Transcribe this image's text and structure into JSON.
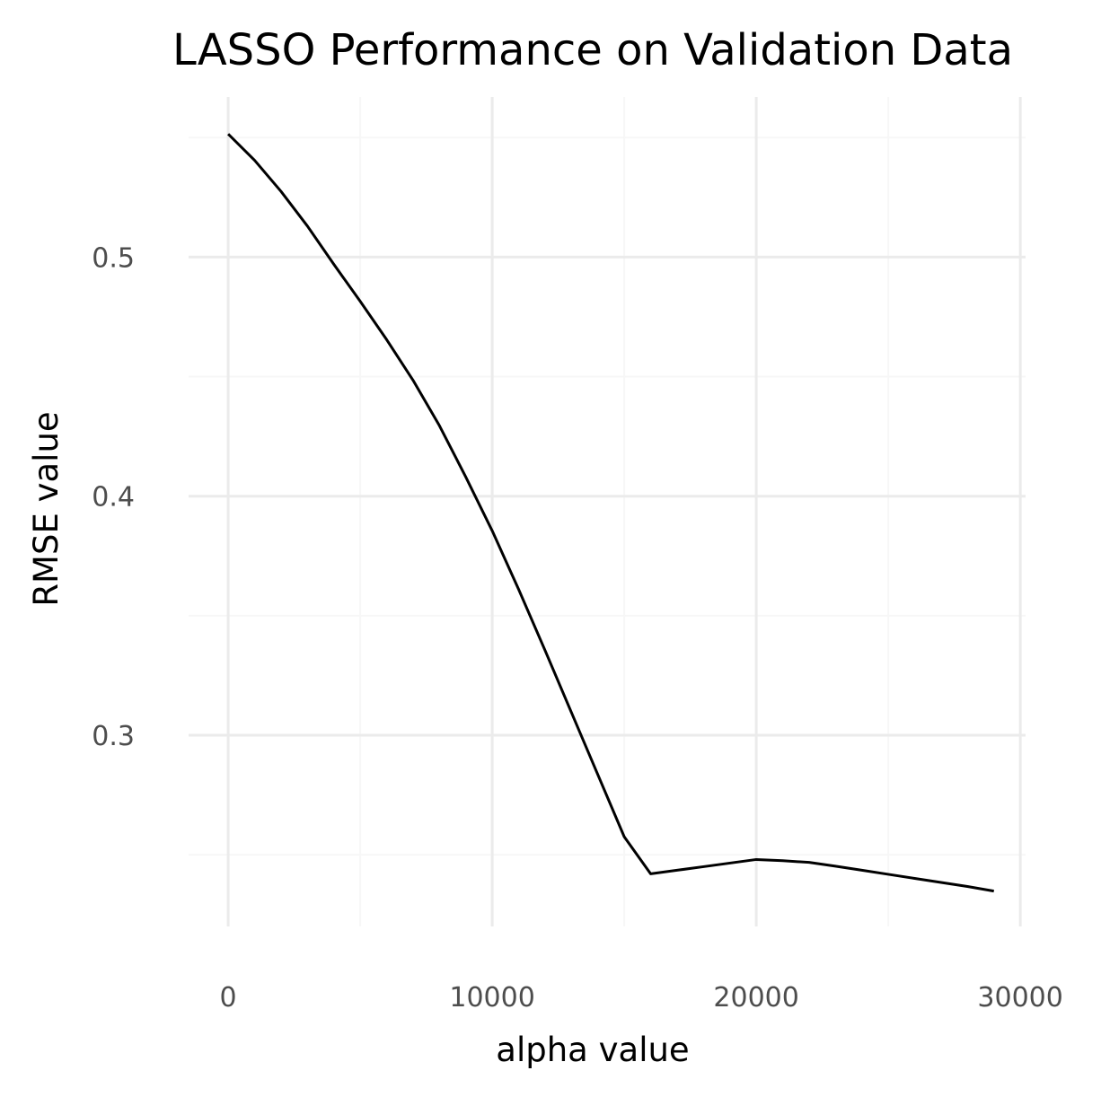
{
  "chart_data": {
    "type": "line",
    "title": "LASSO Performance on Validation Data",
    "xlabel": "alpha value",
    "ylabel": "RMSE value",
    "xlim": [
      -1500,
      30200
    ],
    "ylim": [
      0.22,
      0.567
    ],
    "x_ticks": [
      0,
      10000,
      20000,
      30000
    ],
    "x_tick_labels": [
      "0",
      "10000",
      "20000",
      "30000"
    ],
    "x_minor_ticks": [
      5000,
      15000,
      25000
    ],
    "y_ticks": [
      0.3,
      0.4,
      0.5
    ],
    "y_tick_labels": [
      "0.3",
      "0.4",
      "0.5"
    ],
    "y_minor_ticks": [
      0.25,
      0.35,
      0.45,
      0.55
    ],
    "grid": true,
    "legend": "none",
    "series": [
      {
        "name": "RMSE",
        "color": "#000000",
        "x": [
          0,
          1000,
          2000,
          3000,
          4000,
          5000,
          6000,
          7000,
          8000,
          9000,
          10000,
          11000,
          12000,
          13000,
          14000,
          15000,
          16000,
          17000,
          18000,
          19000,
          20000,
          21000,
          22000,
          23000,
          24000,
          25000,
          26000,
          27000,
          28000,
          29000
        ],
        "y": [
          0.5515,
          0.5405,
          0.5275,
          0.513,
          0.497,
          0.4815,
          0.4655,
          0.4485,
          0.4295,
          0.408,
          0.3855,
          0.361,
          0.3355,
          0.3095,
          0.2835,
          0.2575,
          0.242,
          0.2435,
          0.245,
          0.2465,
          0.248,
          0.2475,
          0.2468,
          0.2452,
          0.2435,
          0.2418,
          0.2401,
          0.2384,
          0.2367,
          0.2348
        ]
      }
    ]
  }
}
